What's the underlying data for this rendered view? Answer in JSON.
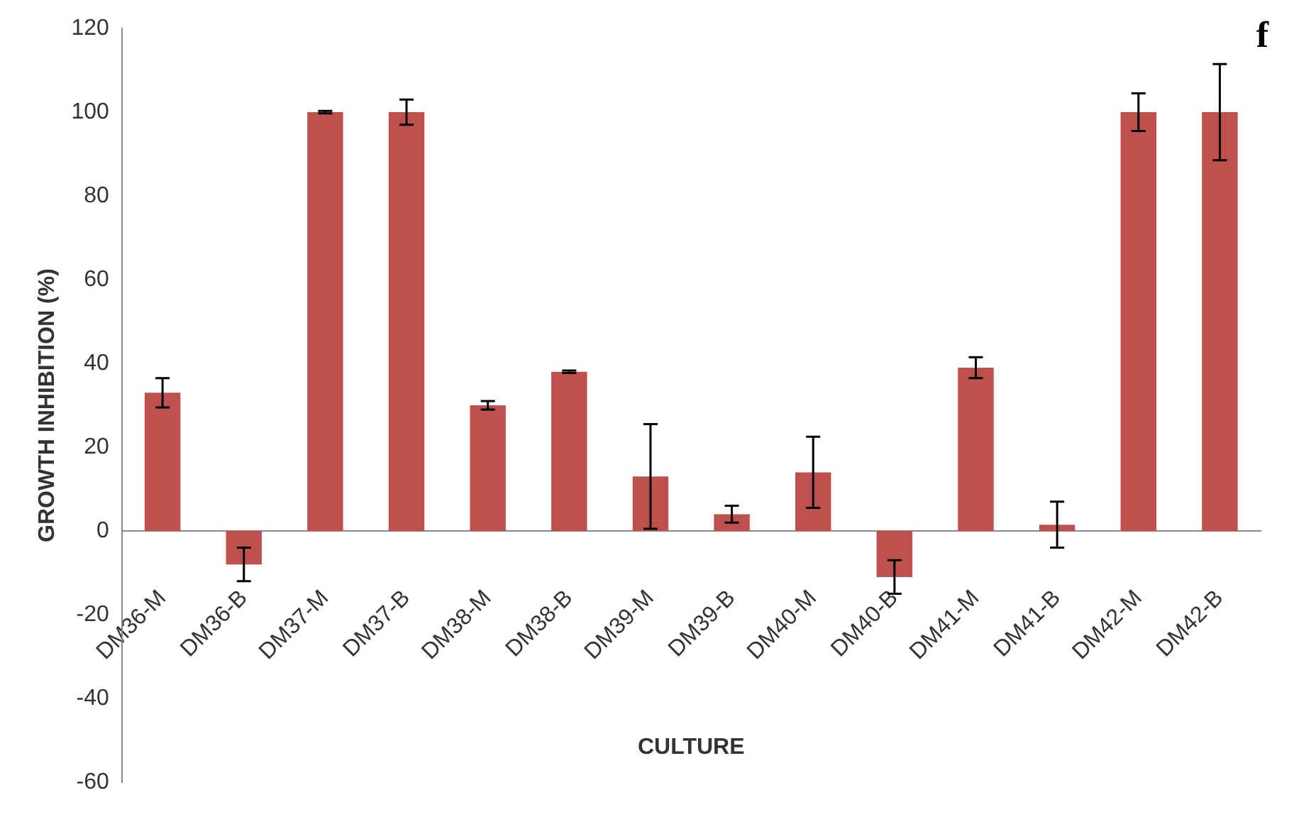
{
  "chart_data": {
    "type": "bar",
    "xlabel": "CULTURE",
    "ylabel": "GROWTH INHIBITION (%)",
    "categories": [
      "DM36-M",
      "DM36-B",
      "DM37-M",
      "DM37-B",
      "DM38-M",
      "DM38-B",
      "DM39-M",
      "DM39-B",
      "DM40-M",
      "DM40-B",
      "DM41-M",
      "DM41-B",
      "DM42-M",
      "DM42-B"
    ],
    "values": [
      33,
      -8,
      100,
      100,
      30,
      38,
      13,
      4,
      14,
      -11,
      39,
      1.5,
      100,
      100
    ],
    "errors": [
      3.5,
      4,
      0.3,
      3,
      1,
      0.3,
      12.5,
      2,
      8.5,
      4,
      2.5,
      5.5,
      4.5,
      11.5
    ],
    "color": "#c0504d",
    "ylim": [
      -60,
      120
    ],
    "yticks": [
      -60,
      -40,
      -20,
      0,
      20,
      40,
      60,
      80,
      100,
      120
    ],
    "grid": false,
    "legend": false,
    "annotations": [
      "f"
    ]
  }
}
